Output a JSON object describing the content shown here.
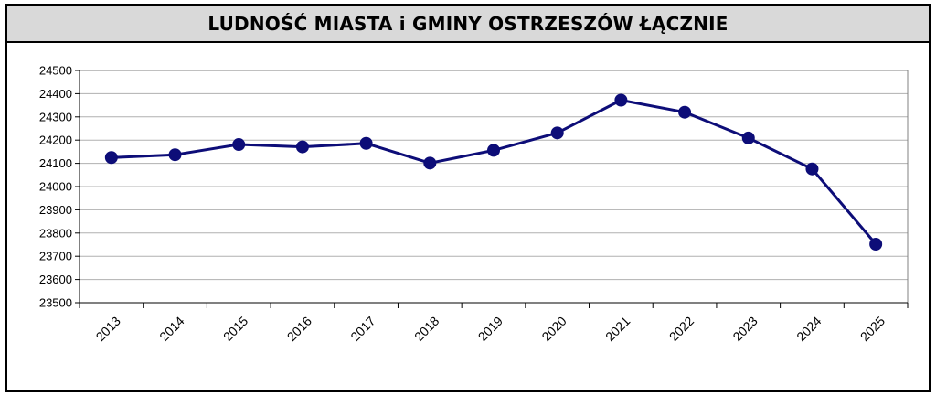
{
  "title": "LUDNOŚĆ MIASTA i GMINY OSTRZESZÓW ŁĄCZNIE",
  "colors": {
    "line": "#0d0d78",
    "marker": "#0d0d78",
    "grid": "#b0b0b0",
    "title_bg": "#d9d9d9",
    "frame": "#000000"
  },
  "chart_data": {
    "type": "line",
    "title": "LUDNOŚĆ MIASTA i GMINY OSTRZESZÓW ŁĄCZNIE",
    "xlabel": "",
    "ylabel": "",
    "categories": [
      "2013",
      "2014",
      "2015",
      "2016",
      "2017",
      "2018",
      "2019",
      "2020",
      "2021",
      "2022",
      "2023",
      "2024",
      "2025"
    ],
    "series": [
      {
        "values": [
          24125,
          24137,
          24181,
          24171,
          24186,
          24101,
          24156,
          24231,
          24372,
          24320,
          24209,
          24076,
          23752
        ]
      }
    ],
    "ylim": [
      23500,
      24500
    ],
    "yticks": [
      "23500",
      "23600",
      "23700",
      "23800",
      "23900",
      "24000",
      "24100",
      "24200",
      "24300",
      "24400",
      "24500"
    ],
    "grid": true,
    "legend": "none"
  }
}
